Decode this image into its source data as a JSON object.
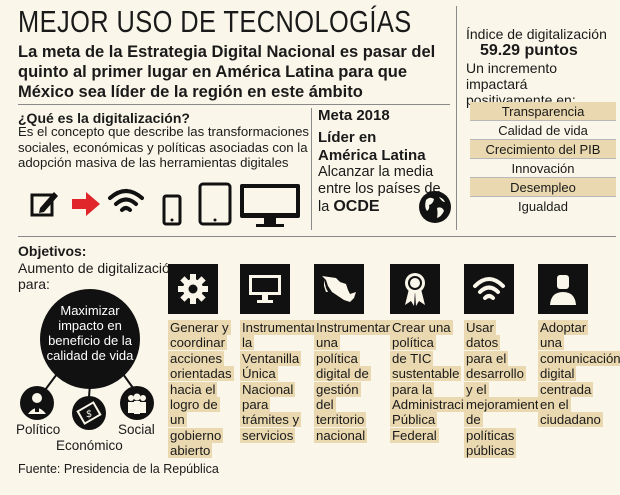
{
  "title": "MEJOR USO DE TECNOLOGÍAS",
  "headline": "La meta de la Estrategia Digital Nacional es pasar del quinto al primer lugar en América Latina para que México sea líder de la región en este ámbito",
  "index": {
    "title": "Índice de digitalización",
    "value": "59.29 puntos",
    "description": "Un incremento impactará positivamente en:",
    "items": [
      "Transparencia",
      "Calidad de vida",
      "Crecimiento del PIB",
      "Innovación",
      "Desempleo",
      "Igualdad"
    ]
  },
  "what": {
    "title": "¿Qué es la digitalización?",
    "body": "Es el concepto que describe las transformaciones sociales, económicas y políticas asociadas con la adopción masiva de las herramientas digitales"
  },
  "meta": {
    "title": "Meta 2018",
    "subtitle": "Líder en América Latina",
    "description": "Alcanzar la media entre los países de la",
    "emphasis": "OCDE"
  },
  "objectives": {
    "title": "Objetivos:",
    "subtitle": "Aumento de digitalización para:",
    "center": "Maximizar impacto en beneficio de la calidad de vida",
    "branches": [
      "Político",
      "Económico",
      "Social"
    ],
    "columns": [
      {
        "icon": "gear-icon",
        "text": "Generar y coordinar acciones orientadas hacia el logro de un gobierno abierto"
      },
      {
        "icon": "monitor-icon",
        "text": "Instrumentar la Ventanilla Única Nacional para trámites y servicios"
      },
      {
        "icon": "mexico-map-icon",
        "text": "Instrumentar una política digital de gestión del territorio nacional"
      },
      {
        "icon": "award-ribbon-icon",
        "text": "Crear una política de TIC sustentable para la Administración Pública Federal"
      },
      {
        "icon": "wifi-icon",
        "text": "Usar datos para el desarrollo y el mejoramiento de políticas públicas"
      },
      {
        "icon": "user-icon",
        "text": "Adoptar una comunicación digital centrada en el ciudadano"
      }
    ]
  },
  "source": "Fuente: Presidencia de la República",
  "colors": {
    "background": "#faf6e9",
    "highlight": "#ead9b0",
    "dark": "#111111",
    "arrow": "#e0262b"
  }
}
